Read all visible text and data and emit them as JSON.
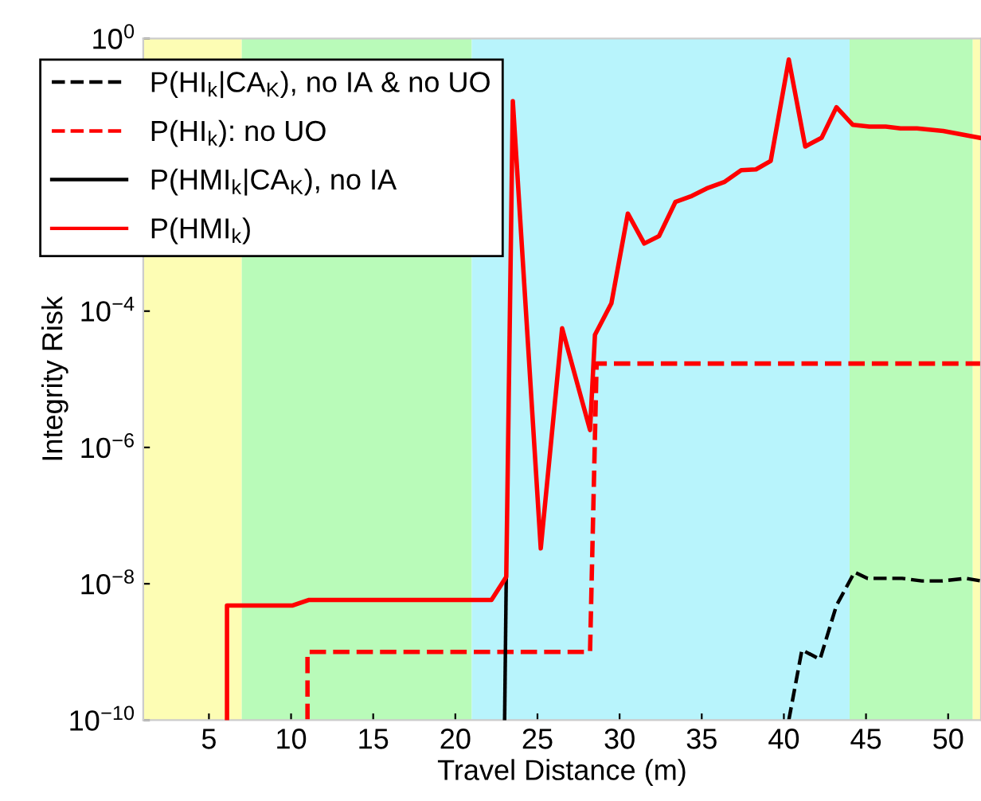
{
  "chart_data": {
    "type": "line",
    "xlabel": "Travel Distance (m)",
    "ylabel": "Integrity Risk",
    "log": "y",
    "xlim": [
      1,
      52
    ],
    "xticks": [
      5,
      10,
      15,
      20,
      25,
      30,
      35,
      40,
      45,
      50
    ],
    "ylim": [
      1e-10,
      1
    ],
    "yticks": [
      {
        "value": 1e-10,
        "label": "10$^{−10}$"
      },
      {
        "value": 1e-08,
        "label": "10$^{−8}$"
      },
      {
        "value": 1e-06,
        "label": "10$^{−6}$"
      },
      {
        "value": 0.0001,
        "label": "10$^{−4}$"
      },
      {
        "value": 0.01,
        "label": null
      },
      {
        "value": 1,
        "label": "10$^{0}$"
      }
    ],
    "grid": false,
    "legend": "top left",
    "marker": "none",
    "bands": [
      {
        "axis": "x",
        "from": 1,
        "to": 7,
        "color": "#fdfdb4"
      },
      {
        "axis": "x",
        "from": 7,
        "to": 21,
        "color": "#b9fbb9"
      },
      {
        "axis": "x",
        "from": 21,
        "to": 44,
        "color": "#b8f4fc"
      },
      {
        "axis": "x",
        "from": 44,
        "to": 51.5,
        "color": "#b9fbb9"
      },
      {
        "axis": "x",
        "from": 51.5,
        "to": 52,
        "color": "#fdfdb4"
      }
    ],
    "series": [
      {
        "name": "P(HI$_{k}$|CA$_{K}$), no IA & no UO",
        "color": "#000000",
        "line_style": "dashed",
        "x": [
          40.3,
          41.1,
          42.2,
          43.2,
          44.3,
          45.1,
          47.2,
          48.4,
          49.6,
          51.1,
          52
        ],
        "values": [
          1e-10,
          1.07e-09,
          7.8e-10,
          4.8e-09,
          1.48e-08,
          1.2e-08,
          1.2e-08,
          1.1e-08,
          1.1e-08,
          1.2e-08,
          1.1e-08
        ]
      },
      {
        "name": "P(HI$_{k}$): no UO",
        "color": "#ff0000",
        "line_style": "dashed",
        "x": [
          11,
          11,
          28.2,
          28.6,
          52
        ],
        "values": [
          1e-10,
          1e-09,
          1e-09,
          1.7e-05,
          1.7e-05
        ]
      },
      {
        "name": "P(HMI$_{k}$|CA$_{K}$), no IA",
        "color": "#000000",
        "line_style": "solid",
        "x": [
          23.0,
          23.1
        ],
        "values": [
          1e-10,
          1.26e-08
        ]
      },
      {
        "name": "P(HMI$_{k}$)",
        "color": "#ff0000",
        "line_style": "solid",
        "x": [
          6.1,
          6.1,
          10.1,
          11.1,
          22.2,
          23.1,
          23.5,
          25.2,
          26.5,
          28.2,
          28.5,
          29.5,
          30.5,
          31.5,
          32.4,
          33.4,
          34.4,
          35.3,
          36.4,
          37.4,
          38.3,
          39.2,
          40.3,
          41.3,
          42.3,
          43.2,
          44.2,
          45.2,
          46.2,
          47.1,
          48.1,
          49.7,
          51.9
        ],
        "values": [
          1e-10,
          4.8e-09,
          4.8e-09,
          5.8e-09,
          5.8e-09,
          1.26e-08,
          0.12,
          3.3e-08,
          5.6e-05,
          1.8e-06,
          4.5e-05,
          0.00013,
          0.0027,
          0.00098,
          0.00126,
          0.004,
          0.0049,
          0.0063,
          0.0079,
          0.0117,
          0.012,
          0.016,
          0.49,
          0.026,
          0.035,
          0.098,
          0.054,
          0.051,
          0.051,
          0.048,
          0.048,
          0.044,
          0.035
        ]
      }
    ]
  }
}
